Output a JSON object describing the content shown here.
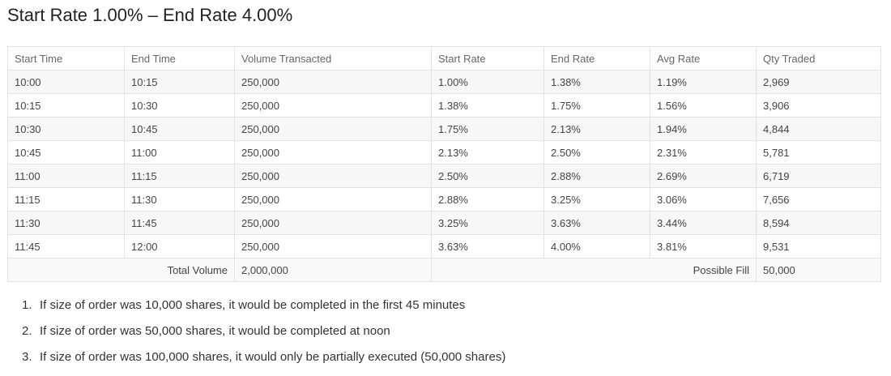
{
  "header": {
    "title": "Start Rate 1.00% – End Rate 4.00%"
  },
  "table": {
    "columns": [
      "Start Time",
      "End Time",
      "Volume Transacted",
      "Start Rate",
      "End Rate",
      "Avg Rate",
      "Qty Traded"
    ],
    "rows": [
      [
        "10:00",
        "10:15",
        "250,000",
        "1.00%",
        "1.38%",
        "1.19%",
        "2,969"
      ],
      [
        "10:15",
        "10:30",
        "250,000",
        "1.38%",
        "1.75%",
        "1.56%",
        "3,906"
      ],
      [
        "10:30",
        "10:45",
        "250,000",
        "1.75%",
        "2.13%",
        "1.94%",
        "4,844"
      ],
      [
        "10:45",
        "11:00",
        "250,000",
        "2.13%",
        "2.50%",
        "2.31%",
        "5,781"
      ],
      [
        "11:00",
        "11:15",
        "250,000",
        "2.50%",
        "2.88%",
        "2.69%",
        "6,719"
      ],
      [
        "11:15",
        "11:30",
        "250,000",
        "2.88%",
        "3.25%",
        "3.06%",
        "7,656"
      ],
      [
        "11:30",
        "11:45",
        "250,000",
        "3.25%",
        "3.63%",
        "3.44%",
        "8,594"
      ],
      [
        "11:45",
        "12:00",
        "250,000",
        "3.63%",
        "4.00%",
        "3.81%",
        "9,531"
      ]
    ],
    "footer": {
      "total_label": "Total Volume",
      "total_value": "2,000,000",
      "fill_label": "Possible Fill",
      "fill_value": "50,000"
    }
  },
  "notes": [
    {
      "marker": "1.",
      "text": "If size of order was 10,000 shares, it would be completed in the first 45 minutes"
    },
    {
      "marker": "2.",
      "text": "If size of order was 50,000 shares, it would be completed at noon"
    },
    {
      "marker": "3.",
      "text": "If size of order was 100,000 shares, it would only be partially executed (50,000 shares)"
    }
  ]
}
